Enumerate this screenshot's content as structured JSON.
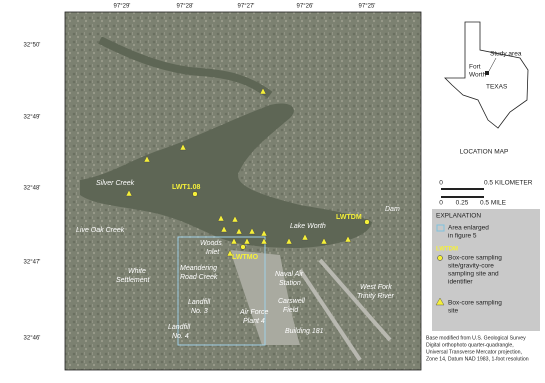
{
  "map": {
    "longitude_labels": [
      "97°29'",
      "97°28'",
      "97°27'",
      "97°26'",
      "97°25'"
    ],
    "latitude_labels": [
      "32°50'",
      "32°49'",
      "32°48'",
      "32°47'",
      "32°46'"
    ],
    "places": [
      "Silver Creek",
      "Live Oak Creek",
      "Lake Worth",
      "Dam",
      [
        "Woods",
        "Inlet"
      ],
      [
        "White",
        "Settlement"
      ],
      [
        "Meandering",
        "Road Creek"
      ],
      [
        "Naval Air",
        "Station"
      ],
      [
        "Carswell",
        "Field"
      ],
      [
        "West Fork",
        "Trinity River"
      ],
      [
        "Landfill",
        "No. 3"
      ],
      [
        "Landfill",
        "No. 4"
      ],
      [
        "Air Force",
        "Plant 4"
      ],
      "Building 181"
    ],
    "sites": [
      "LWT1.08",
      "LWTDM",
      "LWTMO"
    ]
  },
  "location_map": {
    "study_area": "Study area",
    "city": [
      "Fort",
      "Worth"
    ],
    "state": "TEXAS",
    "title": "LOCATION MAP"
  },
  "scale": {
    "km_labels": [
      "0",
      "0.5 KILOMETER"
    ],
    "mile_labels": [
      "0",
      "0.25",
      "0.5 MILE"
    ]
  },
  "explanation": {
    "title": "EXPLANATION",
    "items": [
      {
        "lines": [
          "Area enlarged",
          "in figure 5"
        ]
      },
      {
        "identifier": "LWTDM",
        "lines": [
          "Box-core sampling",
          "site/gravity-core",
          "sampling site and",
          "identifier"
        ]
      },
      {
        "lines": [
          "Box-core sampling",
          "site"
        ]
      }
    ]
  },
  "source_note": [
    "Base modified from U.S. Geological Survey",
    "Digital orthophoto quarter-quadrangle,",
    "Universal Transverse Mercator projection,",
    "Zone 14, Datum NAD 1983, 1-foot resolution",
    ""
  ]
}
